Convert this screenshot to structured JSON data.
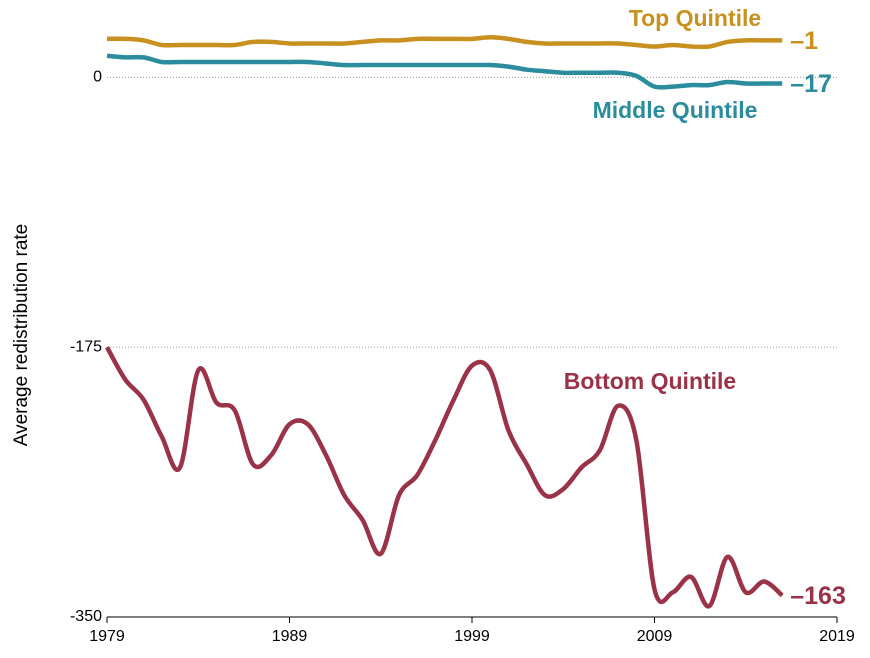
{
  "chart_data": {
    "type": "line",
    "y_label": "Average redistribution rate",
    "x": [
      1979,
      1980,
      1981,
      1982,
      1983,
      1984,
      1985,
      1986,
      1987,
      1988,
      1989,
      1990,
      1991,
      1992,
      1993,
      1994,
      1995,
      1996,
      1997,
      1998,
      1999,
      2000,
      2001,
      2002,
      2003,
      2004,
      2005,
      2006,
      2007,
      2008,
      2009,
      2010,
      2011,
      2012,
      2013,
      2014,
      2015,
      2016
    ],
    "series": [
      {
        "name": "Top Quintile",
        "color": "#c8901e",
        "end_label": "–1",
        "values": [
          25,
          25,
          24,
          21,
          21,
          21,
          21,
          21,
          23,
          23,
          22,
          22,
          22,
          22,
          23,
          24,
          24,
          25,
          25,
          25,
          25,
          26,
          25,
          23,
          22,
          22,
          22,
          22,
          22,
          21,
          20,
          21,
          20,
          20,
          23,
          24,
          24,
          24
        ]
      },
      {
        "name": "Middle Quintile",
        "color": "#2a8c9c",
        "end_label": "–17",
        "values": [
          14,
          13,
          13,
          10,
          10,
          10,
          10,
          10,
          10,
          10,
          10,
          10,
          9,
          8,
          8,
          8,
          8,
          8,
          8,
          8,
          8,
          8,
          7,
          5,
          4,
          3,
          3,
          3,
          3,
          1,
          -6,
          -6,
          -5,
          -5,
          -3,
          -4,
          -4,
          -4
        ]
      },
      {
        "name": "Bottom Quintile",
        "color": "#9b3348",
        "end_label": "–163",
        "values": [
          -175,
          -196,
          -209,
          -233,
          -253,
          -190,
          -211,
          -216,
          -251,
          -245,
          -225,
          -225,
          -245,
          -271,
          -287,
          -309,
          -271,
          -258,
          -235,
          -209,
          -187,
          -190,
          -229,
          -251,
          -271,
          -267,
          -253,
          -242,
          -213,
          -235,
          -332,
          -334,
          -324,
          -343,
          -311,
          -334,
          -327,
          -336
        ]
      }
    ],
    "xlim": [
      1979,
      2019
    ],
    "xticks": [
      1979,
      1989,
      1999,
      2009,
      2019
    ],
    "ylim": [
      -350,
      45
    ],
    "yticks": [
      -350,
      -175,
      0
    ],
    "grid": true
  }
}
